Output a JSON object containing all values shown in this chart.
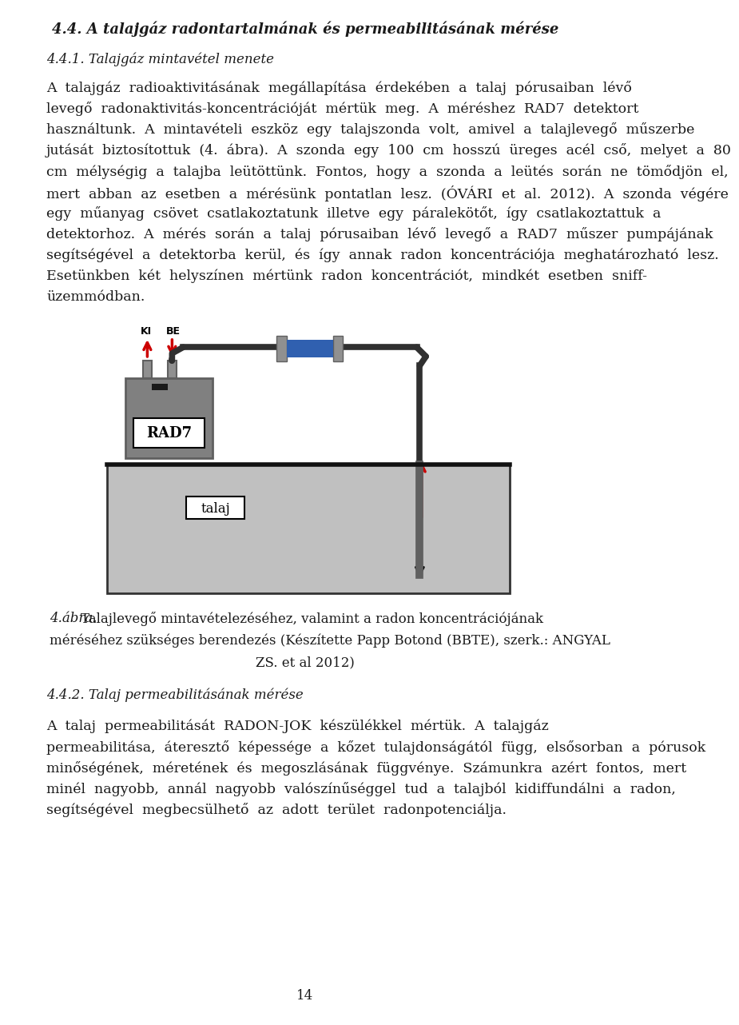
{
  "title": "4.4. A talajgáz radontartalmának és permeabilitásának mérése",
  "section1": "4.4.1. Talajgáz mintavétel menete",
  "para1_lines": [
    "A  talajgáz  radioaktivitásának  megállapítása  érdekében  a  talaj  pórusaiban  lévő",
    "levegő  radonaktivitás-koncentrációját  mértük  meg.  A  méréshez  RAD7  detektort",
    "használtunk.  A  mintavételi  eszköz  egy  talajszonda  volt,  amivel  a  talajlevegő  műszerbe",
    "jutását  biztosítottuk  (4.  ábra).  A  szonda  egy  100  cm  hosszú  üreges  acél  cső,  melyet  a  80",
    "cm  mélységig  a  talajba  leütöttünk.  Fontos,  hogy  a  szonda  a  leütés  során  ne  tömődjön  el,",
    "mert  abban  az  esetben  a  mérésünk  pontatlan  lesz.  (ÓVÁRI  et  al.  2012).  A  szonda  végére",
    "egy  műanyag  csövet  csatlakoztatunk  illetve  egy  páralekötőt,  így  csatlakoztattuk  a",
    "detektorhoz.  A  mérés  során  a  talaj  pórusaiban  lévő  levegő  a  RAD7  műszer  pumpájának",
    "segítségével  a  detektorba  kerül,  és  így  annak  radon  koncentrációja  meghatározható  lesz.",
    "Esetünkben  két  helyszínen  mértünk  radon  koncentrációt,  mindkét  esetben  sniff-",
    "üzemmódban."
  ],
  "caption_italic": "4.ábra.",
  "caption_line1_rest": " Talajlevegő mintavételezéséhez, valamint a radon koncentrációjának",
  "caption_line2": "méréséhez szükséges berendezés (Készítette Papp Botond (BBTE), szerk.: ANGYAL",
  "caption_line3": "ZS. et al 2012)",
  "section2": "4.4.2. Talaj permeabilitásának mérése",
  "para2_lines": [
    "A  talaj  permeabilitását  RADON-JOK  készülékkel  mértük.  A  talajgáz",
    "permeabilitása,  áteresztő  képessége  a  kőzet  tulajdonságától  függ,  elsősorban  a  pórusok",
    "minőségének,  méretének  és  megoszlásának  függvénye.  Számunkra  azért  fontos,  mert",
    "minél  nagyobb,  annál  nagyobb  valószínűséggel  tud  a  talajból  kidiffundálni  a  radon,",
    "segítségével  megbecsülhető  az  adott  terület  radonpotenciálja."
  ],
  "page_num": "14",
  "bg_color": "#ffffff",
  "text_color": "#1a1a1a",
  "soil_color": "#c0c0c0",
  "rad7_color": "#808080",
  "rad7_dark": "#606060",
  "blue_box_color": "#3060b0",
  "clip_color": "#909090",
  "tube_color": "#303030",
  "arrow_color": "#cc0000",
  "probe_color": "#606060"
}
